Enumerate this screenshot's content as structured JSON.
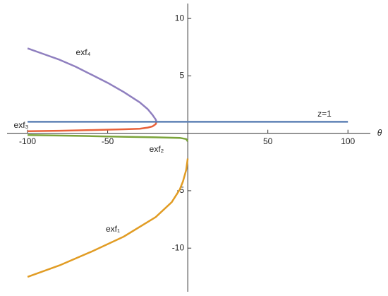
{
  "chart_data": {
    "type": "line",
    "x_label": "θ",
    "xlim": [
      -112.8,
      114
    ],
    "ylim": [
      -13.8,
      11.3
    ],
    "xticks": [
      -100,
      -50,
      50,
      100
    ],
    "yticks": [
      -10,
      -5,
      5,
      10
    ],
    "series": [
      {
        "name": "exf₄",
        "color": "#8f7fbf",
        "x": [
          -100,
          -90,
          -80,
          -70,
          -60,
          -50,
          -40,
          -30,
          -25,
          -22,
          -20,
          -19.5
        ],
        "values": [
          7.4,
          6.9,
          6.4,
          5.8,
          5.1,
          4.4,
          3.6,
          2.7,
          2.1,
          1.6,
          1.2,
          1.0
        ]
      },
      {
        "name": "exf₃",
        "color": "#e8613a",
        "x": [
          -19.5,
          -20,
          -22,
          -25,
          -30,
          -40,
          -60,
          -80,
          -100
        ],
        "values": [
          1.0,
          0.8,
          0.6,
          0.5,
          0.4,
          0.35,
          0.28,
          0.22,
          0.18
        ]
      },
      {
        "name": "exf₂",
        "color": "#7ba43a",
        "x": [
          -100,
          -80,
          -60,
          -40,
          -20,
          -5,
          -1,
          0
        ],
        "values": [
          -0.15,
          -0.2,
          -0.25,
          -0.3,
          -0.35,
          -0.4,
          -0.5,
          -0.7
        ]
      },
      {
        "name": "exf₁",
        "color": "#e19c24",
        "x": [
          0,
          -1,
          -3,
          -5,
          -10,
          -20,
          -40,
          -60,
          -80,
          -100
        ],
        "values": [
          -2.2,
          -3.2,
          -4.2,
          -4.9,
          -6.0,
          -7.3,
          -9.0,
          -10.3,
          -11.5,
          -12.5
        ]
      },
      {
        "name": "z=1",
        "color": "#5e81b5",
        "x": [
          -100,
          100
        ],
        "values": [
          1,
          1
        ]
      }
    ]
  }
}
